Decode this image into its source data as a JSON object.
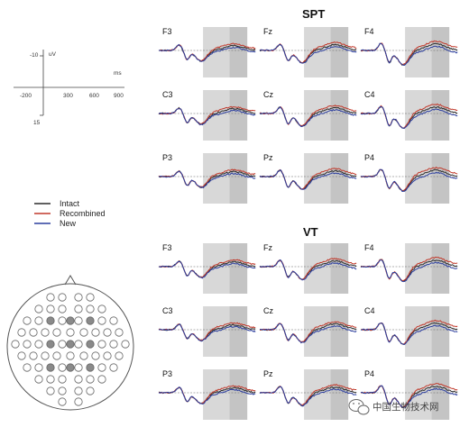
{
  "chart_data": {
    "type": "line",
    "groups": [
      {
        "title": "SPT",
        "panels": [
          {
            "label": "F3"
          },
          {
            "label": "Fz"
          },
          {
            "label": "F4"
          },
          {
            "label": "C3"
          },
          {
            "label": "Cz"
          },
          {
            "label": "C4"
          },
          {
            "label": "P3"
          },
          {
            "label": "Pz"
          },
          {
            "label": "P4"
          }
        ]
      },
      {
        "title": "VT",
        "panels": [
          {
            "label": "F3"
          },
          {
            "label": "Fz"
          },
          {
            "label": "F4"
          },
          {
            "label": "C3"
          },
          {
            "label": "Cz"
          },
          {
            "label": "C4"
          },
          {
            "label": "P3"
          },
          {
            "label": "Pz"
          },
          {
            "label": "P4"
          }
        ]
      }
    ],
    "scale": {
      "y_unit": "uV",
      "y_top": "-10",
      "y_bottom": "15",
      "x_unit": "ms",
      "x_ticks": [
        "-200",
        "300",
        "600",
        "900"
      ]
    },
    "time_ms": [
      -200,
      -100,
      0,
      100,
      200,
      300,
      400,
      500,
      600,
      700,
      800,
      900
    ],
    "shaded_windows_ms": [
      [
        300,
        600
      ],
      [
        600,
        800
      ]
    ],
    "legend": [
      {
        "name": "Intact",
        "color": "#2b2b2b"
      },
      {
        "name": "Recombined",
        "color": "#c0392b"
      },
      {
        "name": "New",
        "color": "#2c3e9e"
      }
    ],
    "electrode_map": {
      "highlighted_count": 9
    }
  },
  "watermark": {
    "text": "中国生物技术网",
    "icon": "wechat-icon"
  },
  "colors": {
    "shade_light": "#d8d8d8",
    "shade_dark": "#c4c4c4",
    "electrode_fill": "#8a8a8a"
  }
}
